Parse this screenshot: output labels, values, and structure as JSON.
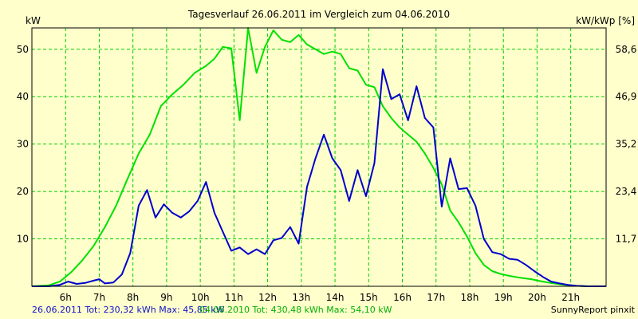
{
  "chart_data": {
    "type": "line",
    "title": "Tagesverlauf 26.06.2011 im Vergleich zum 04.06.2010",
    "ylabel_left": "kW",
    "ylabel_right": "kW/kWp [%]",
    "xlim": [
      5.0,
      22.05
    ],
    "ylim": [
      0,
      54.5
    ],
    "grid": true,
    "x_ticks": [
      {
        "x": 6,
        "label": "6h"
      },
      {
        "x": 7,
        "label": "7h"
      },
      {
        "x": 8,
        "label": "8h"
      },
      {
        "x": 9,
        "label": "9h"
      },
      {
        "x": 10,
        "label": "10h"
      },
      {
        "x": 11,
        "label": "11h"
      },
      {
        "x": 12,
        "label": "12h"
      },
      {
        "x": 13,
        "label": "13h"
      },
      {
        "x": 14,
        "label": "14h"
      },
      {
        "x": 15,
        "label": "15h"
      },
      {
        "x": 16,
        "label": "16h"
      },
      {
        "x": 17,
        "label": "17h"
      },
      {
        "x": 18,
        "label": "18h"
      },
      {
        "x": 19,
        "label": "19h"
      },
      {
        "x": 20,
        "label": "20h"
      },
      {
        "x": 21,
        "label": "21h"
      }
    ],
    "y_ticks_left": [
      {
        "y": 10,
        "label": "10"
      },
      {
        "y": 20,
        "label": "20"
      },
      {
        "y": 30,
        "label": "30"
      },
      {
        "y": 40,
        "label": "40"
      },
      {
        "y": 50,
        "label": "50"
      }
    ],
    "y_ticks_right": [
      {
        "y": 10,
        "label": "11,7"
      },
      {
        "y": 20,
        "label": "23,4"
      },
      {
        "y": 30,
        "label": "35,2"
      },
      {
        "y": 40,
        "label": "46,9"
      },
      {
        "y": 50,
        "label": "58,6"
      }
    ],
    "series": [
      {
        "name": "26.06.2011",
        "color": "#0000cc",
        "points": [
          [
            5.0,
            0
          ],
          [
            5.5,
            0
          ],
          [
            5.83,
            0.3
          ],
          [
            6.08,
            1.0
          ],
          [
            6.33,
            0.5
          ],
          [
            6.58,
            0.7
          ],
          [
            6.83,
            1.2
          ],
          [
            7.0,
            1.5
          ],
          [
            7.17,
            0.6
          ],
          [
            7.42,
            0.8
          ],
          [
            7.67,
            2.5
          ],
          [
            7.92,
            7.0
          ],
          [
            8.17,
            17.0
          ],
          [
            8.42,
            20.3
          ],
          [
            8.67,
            14.5
          ],
          [
            8.92,
            17.3
          ],
          [
            9.17,
            15.5
          ],
          [
            9.42,
            14.5
          ],
          [
            9.67,
            15.8
          ],
          [
            9.92,
            18.0
          ],
          [
            10.17,
            22.0
          ],
          [
            10.42,
            15.5
          ],
          [
            10.67,
            11.5
          ],
          [
            10.92,
            7.5
          ],
          [
            11.17,
            8.2
          ],
          [
            11.42,
            6.8
          ],
          [
            11.67,
            7.8
          ],
          [
            11.92,
            6.8
          ],
          [
            12.17,
            9.7
          ],
          [
            12.42,
            10.2
          ],
          [
            12.67,
            12.5
          ],
          [
            12.92,
            9.0
          ],
          [
            13.17,
            21.0
          ],
          [
            13.42,
            27.0
          ],
          [
            13.67,
            32.0
          ],
          [
            13.92,
            27.0
          ],
          [
            14.17,
            24.5
          ],
          [
            14.42,
            18.0
          ],
          [
            14.67,
            24.5
          ],
          [
            14.92,
            19.0
          ],
          [
            15.17,
            26.0
          ],
          [
            15.42,
            45.8
          ],
          [
            15.67,
            39.5
          ],
          [
            15.92,
            40.5
          ],
          [
            16.17,
            35.0
          ],
          [
            16.42,
            42.2
          ],
          [
            16.67,
            35.5
          ],
          [
            16.92,
            33.5
          ],
          [
            17.17,
            16.8
          ],
          [
            17.42,
            27.0
          ],
          [
            17.67,
            20.5
          ],
          [
            17.92,
            20.7
          ],
          [
            18.17,
            17.0
          ],
          [
            18.42,
            10.0
          ],
          [
            18.67,
            7.2
          ],
          [
            18.92,
            6.8
          ],
          [
            19.17,
            5.8
          ],
          [
            19.42,
            5.6
          ],
          [
            19.67,
            4.5
          ],
          [
            19.92,
            3.2
          ],
          [
            20.17,
            2.0
          ],
          [
            20.42,
            1.0
          ],
          [
            20.67,
            0.6
          ],
          [
            20.92,
            0.3
          ],
          [
            21.17,
            0.1
          ],
          [
            21.5,
            0
          ],
          [
            22.05,
            0
          ]
        ]
      },
      {
        "name": "04.06.2010",
        "color": "#00e000",
        "points": [
          [
            5.0,
            0
          ],
          [
            5.5,
            0.2
          ],
          [
            5.83,
            1.0
          ],
          [
            6.17,
            3.0
          ],
          [
            6.5,
            5.5
          ],
          [
            6.83,
            8.5
          ],
          [
            7.17,
            12.5
          ],
          [
            7.5,
            17.0
          ],
          [
            7.83,
            22.5
          ],
          [
            8.17,
            28.0
          ],
          [
            8.5,
            32.0
          ],
          [
            8.83,
            38.0
          ],
          [
            9.17,
            40.5
          ],
          [
            9.5,
            42.5
          ],
          [
            9.83,
            45.0
          ],
          [
            10.17,
            46.5
          ],
          [
            10.42,
            48.0
          ],
          [
            10.67,
            50.5
          ],
          [
            10.92,
            50.2
          ],
          [
            11.17,
            35.0
          ],
          [
            11.42,
            54.5
          ],
          [
            11.67,
            45.0
          ],
          [
            11.92,
            50.5
          ],
          [
            12.17,
            54.0
          ],
          [
            12.42,
            52.0
          ],
          [
            12.67,
            51.5
          ],
          [
            12.92,
            53.0
          ],
          [
            13.17,
            51.0
          ],
          [
            13.42,
            50.0
          ],
          [
            13.67,
            49.0
          ],
          [
            13.92,
            49.5
          ],
          [
            14.17,
            49.0
          ],
          [
            14.42,
            46.0
          ],
          [
            14.67,
            45.5
          ],
          [
            14.92,
            42.5
          ],
          [
            15.17,
            42.0
          ],
          [
            15.42,
            38.0
          ],
          [
            15.67,
            35.5
          ],
          [
            15.92,
            33.5
          ],
          [
            16.17,
            32.0
          ],
          [
            16.42,
            30.5
          ],
          [
            16.67,
            28.0
          ],
          [
            16.92,
            25.0
          ],
          [
            17.17,
            21.5
          ],
          [
            17.42,
            16.0
          ],
          [
            17.67,
            13.5
          ],
          [
            17.92,
            10.5
          ],
          [
            18.17,
            7.0
          ],
          [
            18.42,
            4.5
          ],
          [
            18.67,
            3.2
          ],
          [
            18.92,
            2.6
          ],
          [
            19.17,
            2.2
          ],
          [
            19.5,
            1.8
          ],
          [
            19.83,
            1.5
          ],
          [
            20.17,
            1.0
          ],
          [
            20.5,
            0.6
          ],
          [
            20.83,
            0.3
          ],
          [
            21.17,
            0.1
          ],
          [
            21.5,
            0
          ],
          [
            22.05,
            0
          ]
        ]
      }
    ]
  },
  "footer": {
    "series1_text": "26.06.2011 Tot: 230,32 kWh Max: 45,85 kW",
    "series2_text": "04.06.2010 Tot: 430,48 kWh Max: 54,10 kW",
    "credit": "SunnyReport pinxit"
  }
}
